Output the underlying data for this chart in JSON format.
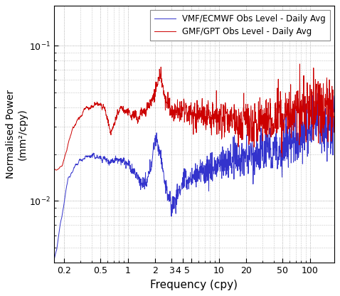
{
  "title": "",
  "xlabel": "Frequency (cpy)",
  "ylabel": "Normalised Power\n(mm²/cpy)",
  "xlim_log": [
    0.155,
    185
  ],
  "ylim_log": [
    0.004,
    0.18
  ],
  "yticks": [
    0.01,
    0.1
  ],
  "line1_color": "#3333cc",
  "line2_color": "#cc0000",
  "legend1": "VMF/ECMWF Obs Level - Daily Avg",
  "legend2": "GMF/GPT Obs Level - Daily Avg",
  "grid_color": "#999999",
  "background_color": "#ffffff",
  "seed": 12345
}
